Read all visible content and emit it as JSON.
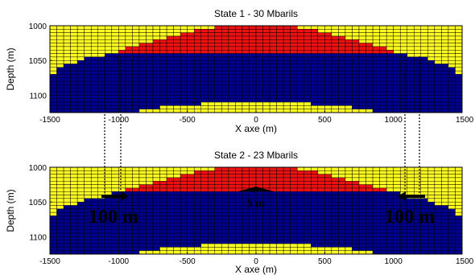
{
  "chart_data": [
    {
      "type": "heatmap",
      "title": "State 1 - 30 Mbarils",
      "xlabel": "X axe (m)",
      "ylabel": "Depth (m)",
      "xlim": [
        -1500,
        1500
      ],
      "ylim": [
        1000,
        1125
      ],
      "x_ticks": [
        "-1500",
        "-1000",
        "-500",
        "0",
        "500",
        "1000",
        "1500"
      ],
      "y_ticks": [
        "1000",
        "1050",
        "1100"
      ],
      "cell_size": {
        "dx": 50,
        "dz": 5
      },
      "facies_colors": {
        "red": "#ee1111",
        "yellow": "#ffff22",
        "blue": "#00008c"
      },
      "layers": {
        "red_bottom_depth": 1040,
        "red_top": [
          [
            -1050,
            1040
          ],
          [
            -800,
            1025
          ],
          [
            -500,
            1010
          ],
          [
            -250,
            1000
          ],
          [
            250,
            1000
          ],
          [
            500,
            1010
          ],
          [
            800,
            1025
          ],
          [
            1050,
            1040
          ]
        ],
        "blue_top": [
          [
            -1500,
            1075
          ],
          [
            -1450,
            1065
          ],
          [
            -1350,
            1055
          ],
          [
            -1200,
            1045
          ],
          [
            -1000,
            1040
          ],
          [
            1000,
            1040
          ],
          [
            1200,
            1045
          ],
          [
            1350,
            1055
          ],
          [
            1450,
            1065
          ],
          [
            1500,
            1075
          ]
        ],
        "bottom_yellow_top": [
          [
            -850,
            1125
          ],
          [
            -800,
            1120
          ],
          [
            -550,
            1115
          ],
          [
            -250,
            1110
          ],
          [
            250,
            1110
          ],
          [
            550,
            1115
          ],
          [
            800,
            1120
          ],
          [
            850,
            1125
          ]
        ]
      }
    },
    {
      "type": "heatmap",
      "title": "State 2 - 23 Mbarils",
      "xlabel": "X axe (m)",
      "ylabel": "Depth (m)",
      "xlim": [
        -1500,
        1500
      ],
      "ylim": [
        1000,
        1125
      ],
      "x_ticks": [
        "-1500",
        "-1000",
        "-500",
        "0",
        "500",
        "1000",
        "1500"
      ],
      "y_ticks": [
        "1000",
        "1050",
        "1100"
      ],
      "cell_size": {
        "dx": 50,
        "dz": 5
      },
      "facies_colors": {
        "red": "#ee1111",
        "yellow": "#ffff22",
        "blue": "#00008c"
      },
      "layers": {
        "red_bottom_depth": 1035,
        "red_top": [
          [
            -1050,
            1040
          ],
          [
            -800,
            1025
          ],
          [
            -500,
            1010
          ],
          [
            -250,
            1000
          ],
          [
            250,
            1000
          ],
          [
            500,
            1010
          ],
          [
            800,
            1025
          ],
          [
            1050,
            1040
          ]
        ],
        "blue_top": [
          [
            -1500,
            1075
          ],
          [
            -1450,
            1065
          ],
          [
            -1350,
            1055
          ],
          [
            -1200,
            1045
          ],
          [
            -1000,
            1040
          ],
          [
            1000,
            1040
          ],
          [
            1200,
            1045
          ],
          [
            1350,
            1055
          ],
          [
            1450,
            1065
          ],
          [
            1500,
            1075
          ]
        ],
        "bottom_yellow_top": [
          [
            -850,
            1125
          ],
          [
            -800,
            1120
          ],
          [
            -550,
            1115
          ],
          [
            -250,
            1110
          ],
          [
            250,
            1110
          ],
          [
            550,
            1115
          ],
          [
            800,
            1120
          ],
          [
            850,
            1125
          ]
        ]
      },
      "annotations": [
        {
          "text": "100 m",
          "side": "left"
        },
        {
          "text": "5 m",
          "side": "center"
        },
        {
          "text": "100 m",
          "side": "right"
        }
      ]
    }
  ]
}
